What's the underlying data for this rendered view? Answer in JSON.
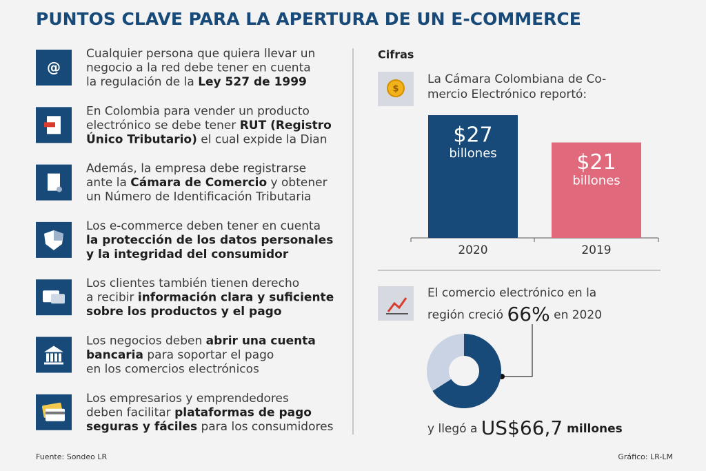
{
  "title": "PUNTOS CLAVE PARA LA APERTURA DE UN E-COMMERCE",
  "items": [
    {
      "lines": [
        [
          {
            "text": "Cualquier persona que quiera llevar un"
          }
        ],
        [
          {
            "text": "negocio a la red debe tener en cuenta"
          }
        ],
        [
          {
            "text": "la regulación de la "
          },
          {
            "text": "Ley 527 de 1999",
            "bold": true
          }
        ]
      ]
    },
    {
      "lines": [
        [
          {
            "text": "En Colombia para vender un producto"
          }
        ],
        [
          {
            "text": "electrónico se debe tener "
          },
          {
            "text": "RUT (Registro",
            "bold": true
          }
        ],
        [
          {
            "text": "Único Tributario)",
            "bold": true
          },
          {
            "text": " el cual expide la Dian"
          }
        ]
      ]
    },
    {
      "lines": [
        [
          {
            "text": "Además, la empresa debe registrarse"
          }
        ],
        [
          {
            "text": "ante la "
          },
          {
            "text": "Cámara de Comercio",
            "bold": true
          },
          {
            "text": " y obtener"
          }
        ],
        [
          {
            "text": "un Número de Identificación Tributaria"
          }
        ]
      ]
    },
    {
      "lines": [
        [
          {
            "text": "Los e-commerce deben tener en cuenta"
          }
        ],
        [
          {
            "text": "la protección de los datos personales",
            "bold": true
          }
        ],
        [
          {
            "text": "y la integridad del consumidor",
            "bold": true
          }
        ]
      ]
    },
    {
      "lines": [
        [
          {
            "text": "Los clientes también tienen derecho"
          }
        ],
        [
          {
            "text": "a recibir "
          },
          {
            "text": "información clara y suficiente",
            "bold": true
          }
        ],
        [
          {
            "text": "sobre los productos y el pago",
            "bold": true
          }
        ]
      ]
    },
    {
      "lines": [
        [
          {
            "text": "Los negocios deben "
          },
          {
            "text": "abrir una cuenta",
            "bold": true
          }
        ],
        [
          {
            "text": "bancaria",
            "bold": true
          },
          {
            "text": " para soportar el pago"
          }
        ],
        [
          {
            "text": "en los comercios electrónicos"
          }
        ]
      ]
    },
    {
      "lines": [
        [
          {
            "text": "Los empresarios y emprendedores"
          }
        ],
        [
          {
            "text": "deben facilitar "
          },
          {
            "text": "plataformas de pago",
            "bold": true
          }
        ],
        [
          {
            "text": "seguras y fáciles",
            "bold": true
          },
          {
            "text": " para los consumidores"
          }
        ]
      ]
    }
  ],
  "section_title": "Cifras",
  "report_text": [
    "La Cámara Colombiana de Co-",
    "mercio Electrónico reportó:"
  ],
  "growth_text": {
    "line1": "El comercio electrónico en la",
    "before": "región creció ",
    "highlight": "66%",
    "after": " en 2020"
  },
  "amount_text": {
    "before": "y llegó a ",
    "highlight": "US$66,7",
    "after": " millones"
  },
  "source": "Fuente: Sondeo LR",
  "credit": "Gráfico: LR-LM",
  "chart_data": [
    {
      "type": "bar",
      "categories": [
        "2020",
        "2019"
      ],
      "values": [
        27,
        21
      ],
      "value_labels": [
        "$27",
        "$21"
      ],
      "unit_labels": [
        "billones",
        "billones"
      ],
      "colors": [
        "#174a78",
        "#e06a7b"
      ],
      "ylim": [
        0,
        27
      ]
    },
    {
      "type": "pie",
      "values": [
        66,
        34
      ],
      "colors": [
        "#174a78",
        "#c9d3e3"
      ],
      "donut": true
    }
  ]
}
